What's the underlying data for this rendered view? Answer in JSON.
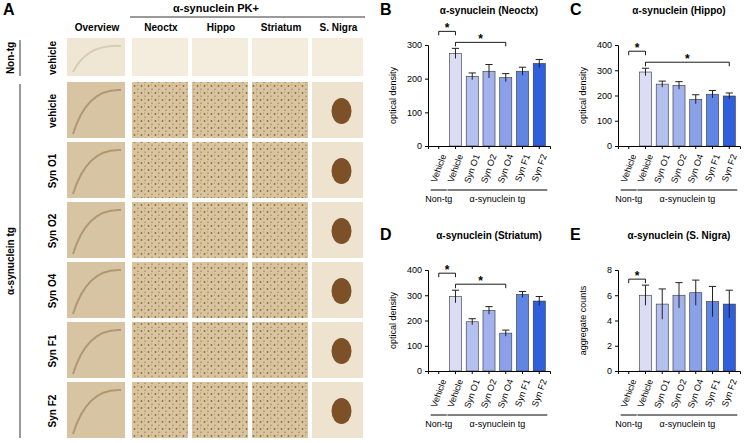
{
  "panel_a": {
    "label": "A",
    "title": "α-synuclein PK+",
    "columns": [
      "Overview",
      "Neoctx",
      "Hippo",
      "Striatum",
      "S. Nigra"
    ],
    "row_groups": [
      {
        "label": "Non-tg",
        "rows": [
          "vehicle"
        ]
      },
      {
        "label": "α-synuclein tg",
        "rows": [
          "vehicle",
          "Syn O1",
          "Syn O2",
          "Syn O4",
          "Syn F1",
          "Syn F2"
        ]
      }
    ]
  },
  "chart_data": [
    {
      "type": "bar",
      "panel": "B",
      "title": "α-synuclein (Neoctx)",
      "y_label": "optical density",
      "categories": [
        "Vehicle",
        "Vehicle",
        "Syn O1",
        "Syn O2",
        "Syn O4",
        "Syn F1",
        "Syn F2"
      ],
      "values": [
        0,
        275,
        207,
        222,
        203,
        222,
        245
      ],
      "errors": [
        0,
        15,
        10,
        20,
        12,
        12,
        12
      ],
      "colors": [
        "#e8e8fa",
        "#dcdcf6",
        "#b4c0ef",
        "#a2b2ec",
        "#8aa1e9",
        "#5f86e5",
        "#2f5fdc"
      ],
      "groups": [
        {
          "label": "Non-tg",
          "categories": [
            0,
            0
          ]
        },
        {
          "label": "α-synuclein tg",
          "categories": [
            1,
            6
          ]
        }
      ],
      "annotations": [
        {
          "text": "*",
          "categories": [
            0,
            1
          ]
        },
        {
          "text": "*",
          "categories": [
            1,
            4
          ]
        }
      ],
      "ylim": [
        0,
        300
      ],
      "yticks": [
        0,
        100,
        200,
        300
      ]
    },
    {
      "type": "bar",
      "panel": "C",
      "title": "α-synuclein (Hippo)",
      "y_label": "optical density",
      "categories": [
        "Vehicle",
        "Vehicle",
        "Syn O1",
        "Syn O2",
        "Syn O4",
        "Syn F1",
        "Syn F2"
      ],
      "values": [
        0,
        293,
        245,
        240,
        185,
        205,
        198
      ],
      "errors": [
        0,
        15,
        12,
        15,
        18,
        15,
        12
      ],
      "colors": [
        "#e8e8fa",
        "#dcdcf6",
        "#b4c0ef",
        "#a2b2ec",
        "#8aa1e9",
        "#5f86e5",
        "#2f5fdc"
      ],
      "groups": [
        {
          "label": "Non-tg",
          "categories": [
            0,
            0
          ]
        },
        {
          "label": "α-synuclein tg",
          "categories": [
            1,
            6
          ]
        }
      ],
      "annotations": [
        {
          "text": "*",
          "categories": [
            0,
            1
          ]
        },
        {
          "text": "*",
          "categories": [
            1,
            6
          ]
        }
      ],
      "ylim": [
        0,
        400
      ],
      "yticks": [
        0,
        100,
        200,
        300,
        400
      ]
    },
    {
      "type": "bar",
      "panel": "D",
      "title": "α-synuclein (Striatum)",
      "y_label": "optical density",
      "categories": [
        "Vehicle",
        "Vehicle",
        "Syn O1",
        "Syn O2",
        "Syn O4",
        "Syn F1",
        "Syn F2"
      ],
      "values": [
        0,
        295,
        195,
        240,
        150,
        303,
        277
      ],
      "errors": [
        0,
        25,
        12,
        15,
        12,
        12,
        18
      ],
      "colors": [
        "#e8e8fa",
        "#dcdcf6",
        "#b4c0ef",
        "#a2b2ec",
        "#8aa1e9",
        "#5f86e5",
        "#2f5fdc"
      ],
      "groups": [
        {
          "label": "Non-tg",
          "categories": [
            0,
            0
          ]
        },
        {
          "label": "α-synuclein tg",
          "categories": [
            1,
            6
          ]
        }
      ],
      "annotations": [
        {
          "text": "*",
          "categories": [
            0,
            1
          ]
        },
        {
          "text": "*",
          "categories": [
            1,
            4
          ]
        }
      ],
      "ylim": [
        0,
        400
      ],
      "yticks": [
        0,
        100,
        200,
        300,
        400
      ]
    },
    {
      "type": "bar",
      "panel": "E",
      "title": "α-synuclein (S. Nigra)",
      "y_label": "aggregate counts",
      "categories": [
        "Vehicle",
        "Vehicle",
        "Syn O1",
        "Syn O2",
        "Syn O4",
        "Syn F1",
        "Syn F2"
      ],
      "values": [
        0,
        6.0,
        5.3,
        6.0,
        6.2,
        5.5,
        5.3
      ],
      "errors": [
        0,
        0.8,
        1.2,
        1.0,
        1.0,
        1.2,
        1.1
      ],
      "colors": [
        "#e8e8fa",
        "#dcdcf6",
        "#b4c0ef",
        "#a2b2ec",
        "#8aa1e9",
        "#5f86e5",
        "#2f5fdc"
      ],
      "groups": [
        {
          "label": "Non-tg",
          "categories": [
            0,
            0
          ]
        },
        {
          "label": "α-synuclein tg",
          "categories": [
            1,
            6
          ]
        }
      ],
      "annotations": [
        {
          "text": "*",
          "categories": [
            0,
            1
          ]
        }
      ],
      "ylim": [
        0,
        8
      ],
      "yticks": [
        0,
        2,
        4,
        6,
        8
      ]
    }
  ]
}
